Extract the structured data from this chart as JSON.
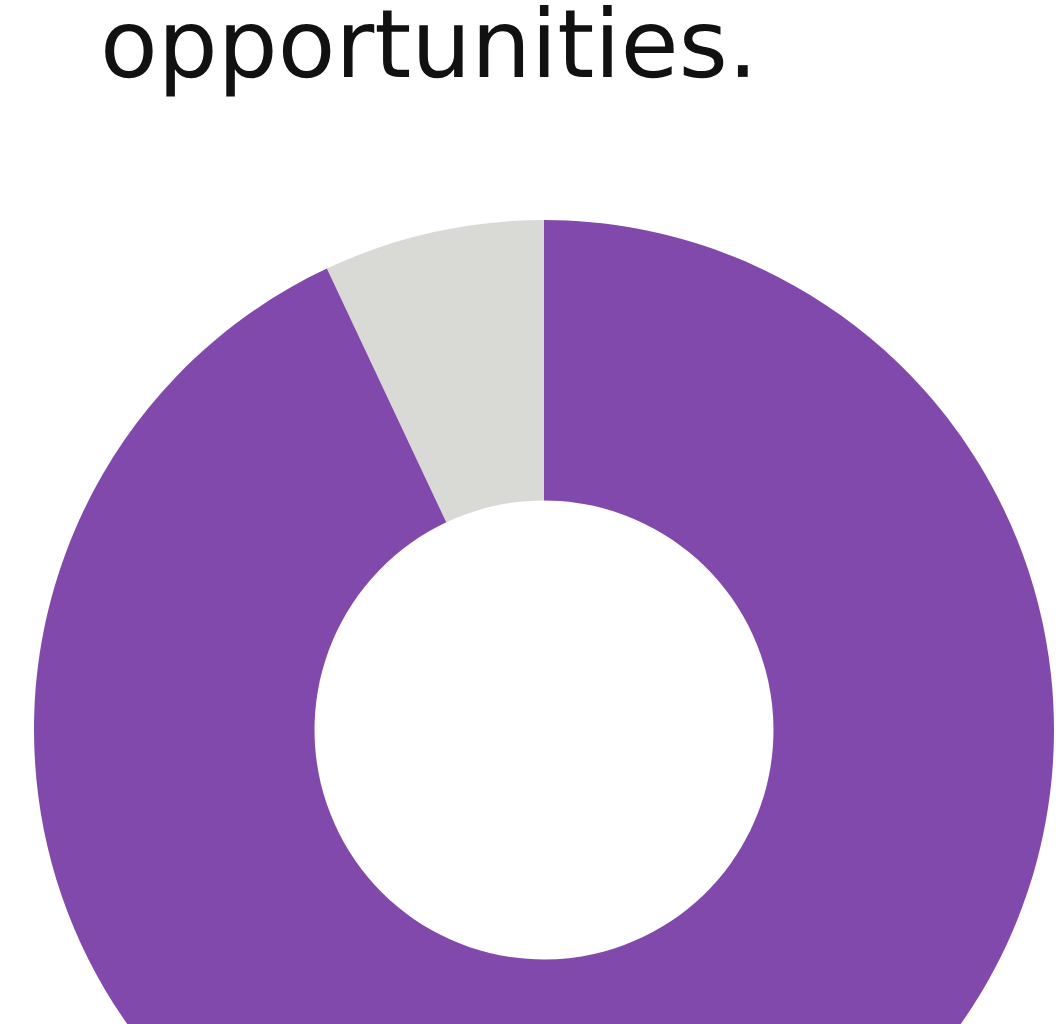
{
  "chart_data": {
    "type": "donut",
    "title": "opportunities.",
    "categories": [
      null,
      null
    ],
    "values": [
      7,
      93
    ],
    "colors": [
      "#d9d9d6",
      "#8049ab"
    ]
  }
}
